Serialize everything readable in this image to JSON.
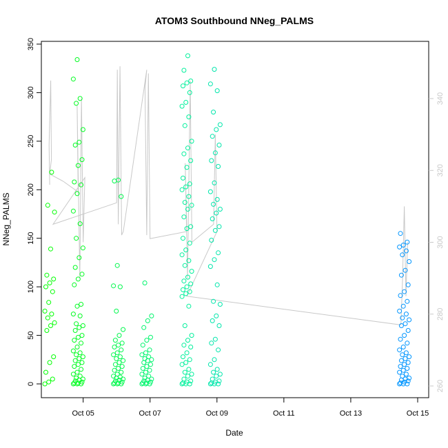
{
  "chart_data": {
    "type": "scatter",
    "title": "ATOM3 Southbound NNeg_PALMS",
    "xlabel": "Date",
    "ylabel": "NNeg_PALMS",
    "x_ticks": [
      {
        "day": 5,
        "label": "Oct 05"
      },
      {
        "day": 7,
        "label": "Oct 07"
      },
      {
        "day": 9,
        "label": "Oct 09"
      },
      {
        "day": 11,
        "label": "Oct 11"
      },
      {
        "day": 13,
        "label": "Oct 13"
      },
      {
        "day": 15,
        "label": "Oct 15"
      }
    ],
    "xlim": [
      "Oct 03 18:00",
      "Oct 15 08:00"
    ],
    "ylim": [
      0,
      350
    ],
    "y_ticks": [
      0,
      50,
      100,
      150,
      200,
      250,
      300,
      350
    ],
    "ylim_right": [
      259,
      356
    ],
    "y_ticks_right": [
      260,
      280,
      300,
      320,
      340
    ],
    "grid": false,
    "series": [
      {
        "marker": "open circle",
        "colors": [
          "#00ff00",
          "#00f0a0",
          "#0095ff"
        ],
        "clusters": [
          {
            "day": 4.0,
            "values": [
              0,
              2,
              5,
              12,
              22,
              28,
              55,
              60,
              63,
              68,
              72,
              75,
              84,
              95,
              100,
              104,
              108,
              112,
              139,
              177,
              184,
              218
            ]
          },
          {
            "day": 4.85,
            "values": [
              0,
              0,
              0,
              1,
              1,
              2,
              3,
              4,
              5,
              6,
              8,
              10,
              12,
              15,
              18,
              20,
              22,
              24,
              26,
              28,
              30,
              32,
              34,
              38,
              42,
              45,
              48,
              50,
              55,
              58,
              60,
              62,
              70,
              72,
              80,
              82,
              102,
              108,
              113,
              120,
              130,
              140,
              150,
              165,
              178,
              196,
              205,
              208,
              225,
              231,
              246,
              249,
              262,
              289,
              294,
              314,
              334
            ]
          },
          {
            "day": 6.05,
            "values": [
              0,
              0,
              0,
              1,
              1,
              2,
              3,
              4,
              5,
              6,
              7,
              8,
              10,
              12,
              14,
              16,
              18,
              20,
              22,
              24,
              26,
              28,
              30,
              32,
              35,
              38,
              40,
              42,
              45,
              50,
              56,
              75,
              100,
              101,
              122,
              193,
              209,
              210
            ]
          },
          {
            "day": 6.9,
            "values": [
              0,
              0,
              0,
              1,
              1,
              2,
              3,
              4,
              5,
              6,
              8,
              10,
              12,
              14,
              16,
              18,
              20,
              22,
              24,
              25,
              26,
              28,
              30,
              32,
              35,
              40,
              45,
              48,
              58,
              65,
              70,
              104
            ]
          },
          {
            "day": 8.1,
            "values": [
              0,
              0,
              0,
              1,
              2,
              3,
              5,
              8,
              10,
              12,
              15,
              20,
              22,
              25,
              28,
              32,
              38,
              40,
              45,
              50,
              60,
              80,
              90,
              93,
              95,
              97,
              100,
              103,
              106,
              110,
              116,
              122,
              127,
              133,
              138,
              145,
              150,
              160,
              162,
              172,
              180,
              184,
              187,
              193,
              200,
              203,
              206,
              212,
              223,
              230,
              237,
              243,
              250,
              266,
              275,
              286,
              290,
              300,
              307,
              310,
              312,
              323,
              338
            ]
          },
          {
            "day": 8.95,
            "values": [
              0,
              0,
              0,
              1,
              2,
              3,
              5,
              8,
              10,
              12,
              15,
              20,
              25,
              35,
              42,
              46,
              60,
              65,
              70,
              82,
              85,
              102,
              121,
              128,
              135,
              148,
              158,
              162,
              170,
              176,
              180,
              185,
              190,
              198,
              207,
              224,
              230,
              238,
              246,
              255,
              262,
              267,
              280,
              302,
              309,
              324
            ]
          },
          {
            "day": 14.6,
            "values": [
              0,
              0,
              0,
              1,
              2,
              3,
              4,
              5,
              6,
              8,
              10,
              12,
              14,
              16,
              18,
              20,
              22,
              24,
              26,
              28,
              30,
              32,
              35,
              38,
              42,
              46,
              50,
              55,
              60,
              62,
              66,
              68,
              72,
              75,
              80,
              85,
              91,
              95,
              102,
              112,
              117,
              126,
              133,
              137,
              141,
              143,
              146,
              155
            ]
          }
        ]
      },
      {
        "axis": "right",
        "type": "line",
        "color": "#c8c8c8",
        "points": [
          {
            "day": 4.0,
            "value": 316
          },
          {
            "day": 3.98,
            "value": 327
          },
          {
            "day": 4.03,
            "value": 345
          },
          {
            "day": 4.05,
            "value": 323
          },
          {
            "day": 4.0,
            "value": 319
          },
          {
            "day": 4.4,
            "value": 317
          },
          {
            "day": 4.85,
            "value": 314
          },
          {
            "day": 4.82,
            "value": 338
          },
          {
            "day": 4.9,
            "value": 290
          },
          {
            "day": 4.95,
            "value": 340
          },
          {
            "day": 5.0,
            "value": 300
          },
          {
            "day": 5.05,
            "value": 318
          },
          {
            "day": 4.1,
            "value": 305
          },
          {
            "day": 6.0,
            "value": 311
          },
          {
            "day": 6.02,
            "value": 348
          },
          {
            "day": 6.05,
            "value": 305
          },
          {
            "day": 6.1,
            "value": 349
          },
          {
            "day": 6.15,
            "value": 302
          },
          {
            "day": 6.2,
            "value": 303
          },
          {
            "day": 6.9,
            "value": 348
          },
          {
            "day": 6.85,
            "value": 343
          },
          {
            "day": 6.9,
            "value": 302
          },
          {
            "day": 6.95,
            "value": 347
          },
          {
            "day": 7.0,
            "value": 301
          },
          {
            "day": 8.1,
            "value": 303
          },
          {
            "day": 8.05,
            "value": 322
          },
          {
            "day": 8.12,
            "value": 290
          },
          {
            "day": 8.2,
            "value": 345
          },
          {
            "day": 8.25,
            "value": 300
          },
          {
            "day": 8.9,
            "value": 305
          },
          {
            "day": 8.95,
            "value": 330
          },
          {
            "day": 9.0,
            "value": 303
          },
          {
            "day": 8.1,
            "value": 285
          },
          {
            "day": 14.5,
            "value": 277
          },
          {
            "day": 14.55,
            "value": 290
          },
          {
            "day": 14.6,
            "value": 310
          },
          {
            "day": 14.65,
            "value": 285
          },
          {
            "day": 14.7,
            "value": 300
          }
        ]
      }
    ]
  }
}
